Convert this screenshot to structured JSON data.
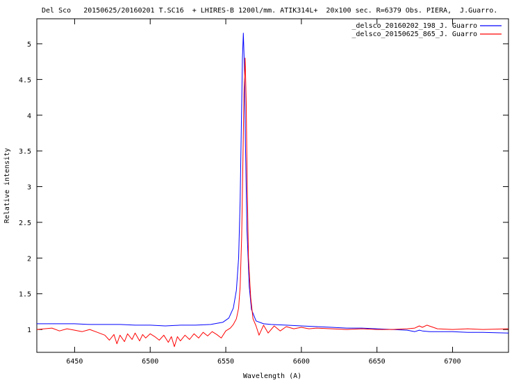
{
  "chart_data": {
    "type": "line",
    "title": "Del Sco   20150625/20160201 T.SC16  + LHIRES-B 1200l/mm. ATIK314L+  20x100 sec. R=6379 Obs. PIERA,  J.Guarro.",
    "xlabel": "Wavelength (A)",
    "ylabel": "Relative intensity",
    "xlim": [
      6425,
      6737
    ],
    "ylim": [
      0.68,
      5.35
    ],
    "xticks": [
      6450,
      6500,
      6550,
      6600,
      6650,
      6700
    ],
    "yticks": [
      1,
      1.5,
      2,
      2.5,
      3,
      3.5,
      4,
      4.5,
      5
    ],
    "ytick_labels": [
      "1",
      "1.5",
      "2",
      "2.5",
      "3",
      "3.5",
      "4",
      "4.5",
      "5"
    ],
    "legend_position": "top-right",
    "grid": false,
    "series": [
      {
        "name": "_delsco_20160202_198_J. Guarro",
        "color": "#0000ff",
        "x": [
          6425,
          6440,
          6450,
          6460,
          6470,
          6480,
          6490,
          6500,
          6510,
          6520,
          6530,
          6540,
          6548,
          6552,
          6555,
          6557,
          6558.5,
          6559.5,
          6560.3,
          6561,
          6561.6,
          6562.3,
          6563,
          6564,
          6565.5,
          6567,
          6570,
          6575,
          6580,
          6590,
          6600,
          6610,
          6620,
          6630,
          6640,
          6650,
          6660,
          6670,
          6675,
          6678,
          6680,
          6685,
          6690,
          6700,
          6710,
          6720,
          6737
        ],
        "y": [
          1.08,
          1.08,
          1.08,
          1.07,
          1.07,
          1.07,
          1.06,
          1.06,
          1.05,
          1.06,
          1.06,
          1.07,
          1.1,
          1.16,
          1.3,
          1.55,
          2.0,
          2.8,
          3.9,
          4.8,
          5.15,
          4.7,
          3.6,
          2.4,
          1.6,
          1.28,
          1.12,
          1.08,
          1.07,
          1.06,
          1.05,
          1.04,
          1.03,
          1.02,
          1.02,
          1.01,
          1.0,
          0.99,
          0.97,
          0.99,
          0.98,
          0.97,
          0.97,
          0.97,
          0.96,
          0.96,
          0.95
        ]
      },
      {
        "name": "_delsco_20150625_865_J. Guarro",
        "color": "#ff0000",
        "x": [
          6425,
          6435,
          6440,
          6445,
          6450,
          6455,
          6460,
          6465,
          6470,
          6473,
          6476,
          6478,
          6480,
          6483,
          6485,
          6488,
          6490,
          6493,
          6495,
          6497,
          6500,
          6503,
          6506,
          6509,
          6512,
          6514,
          6516,
          6518,
          6520,
          6523,
          6526,
          6529,
          6532,
          6535,
          6538,
          6541,
          6544,
          6547,
          6550,
          6553,
          6555,
          6557,
          6558.5,
          6559.5,
          6560.5,
          6561.3,
          6562,
          6562.8,
          6563.5,
          6564.2,
          6565,
          6566.5,
          6568,
          6570,
          6572,
          6575,
          6578,
          6582,
          6586,
          6590,
          6595,
          6600,
          6605,
          6610,
          6620,
          6630,
          6640,
          6650,
          6660,
          6670,
          6675,
          6678,
          6680,
          6683,
          6690,
          6700,
          6710,
          6720,
          6737
        ],
        "y": [
          1.0,
          1.02,
          0.98,
          1.01,
          0.99,
          0.97,
          1.0,
          0.96,
          0.92,
          0.85,
          0.93,
          0.8,
          0.92,
          0.83,
          0.94,
          0.86,
          0.95,
          0.84,
          0.93,
          0.88,
          0.94,
          0.9,
          0.85,
          0.92,
          0.82,
          0.9,
          0.76,
          0.9,
          0.84,
          0.92,
          0.86,
          0.94,
          0.88,
          0.96,
          0.91,
          0.97,
          0.93,
          0.88,
          0.98,
          1.02,
          1.07,
          1.15,
          1.3,
          1.6,
          2.3,
          3.3,
          4.3,
          4.8,
          4.2,
          3.0,
          2.0,
          1.45,
          1.15,
          1.05,
          0.92,
          1.06,
          0.95,
          1.05,
          0.98,
          1.04,
          1.01,
          1.03,
          1.01,
          1.02,
          1.01,
          1.0,
          1.01,
          1.0,
          1.0,
          1.01,
          1.02,
          1.05,
          1.03,
          1.06,
          1.01,
          1.0,
          1.01,
          1.0,
          1.01
        ]
      }
    ]
  }
}
